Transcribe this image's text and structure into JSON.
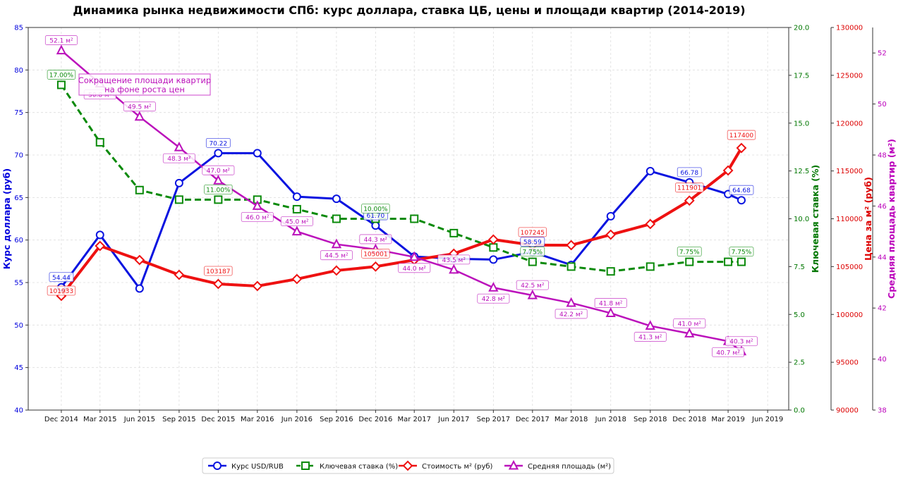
{
  "chart_data": {
    "type": "line",
    "title": "Динамика рынка недвижимости СПб: курс доллара, ставка ЦБ, цены и площади квартир (2014-2019)",
    "x": [
      "2014-12",
      "2015-03",
      "2015-06",
      "2015-09",
      "2015-12",
      "2016-03",
      "2016-06",
      "2016-09",
      "2016-12",
      "2017-03",
      "2017-06",
      "2017-09",
      "2017-12",
      "2018-03",
      "2018-06",
      "2018-09",
      "2018-12",
      "2019-03",
      "2019-04"
    ],
    "xtick_labels": [
      "Dec 2014",
      "Mar 2015",
      "Jun 2015",
      "Sep 2015",
      "Dec 2015",
      "Mar 2016",
      "Jun 2016",
      "Sep 2016",
      "Dec 2016",
      "Mar 2017",
      "Jun 2017",
      "Sep 2017",
      "Dec 2017",
      "Mar 2018",
      "Jun 2018",
      "Sep 2018",
      "Dec 2018",
      "Mar 2019",
      "Jun 2019"
    ],
    "xtick_dates": [
      "2014-12",
      "2015-03",
      "2015-06",
      "2015-09",
      "2015-12",
      "2016-03",
      "2016-06",
      "2016-09",
      "2016-12",
      "2017-03",
      "2017-06",
      "2017-09",
      "2017-12",
      "2018-03",
      "2018-06",
      "2018-09",
      "2018-12",
      "2019-03",
      "2019-06"
    ],
    "xlim": [
      "2014-09-15",
      "2019-07-20"
    ],
    "grid": true,
    "legend_placement": "bottom-center",
    "axes": [
      {
        "id": "usd",
        "side": "left",
        "label": "Курс доллара (руб)",
        "ylim": [
          40,
          85
        ],
        "ticks": [
          40,
          45,
          50,
          55,
          60,
          65,
          70,
          75,
          80,
          85
        ],
        "color": "#0000dd",
        "tick_decimals": 0
      },
      {
        "id": "rate",
        "side": "right",
        "label": "Ключевая ставка (%)",
        "ylim": [
          0,
          20
        ],
        "ticks": [
          0,
          2.5,
          5,
          7.5,
          10,
          12.5,
          15,
          17.5,
          20
        ],
        "color": "#007700",
        "tick_decimals": 1
      },
      {
        "id": "price",
        "side": "right",
        "label": "Цена за м² (руб)",
        "ylim": [
          90000,
          130000
        ],
        "ticks": [
          90000,
          95000,
          100000,
          105000,
          110000,
          115000,
          120000,
          125000,
          130000
        ],
        "color": "#dd0000",
        "tick_decimals": 0
      },
      {
        "id": "area",
        "side": "right",
        "label": "Средняя площадь квартир (м²)",
        "ylim": [
          38,
          53
        ],
        "ticks": [
          38,
          40,
          42,
          44,
          46,
          48,
          50,
          52
        ],
        "color": "#bb00bb",
        "tick_decimals": 0
      }
    ],
    "series": [
      {
        "name": "Курс USD/RUB",
        "axis": "usd",
        "color": "#0a14e0",
        "marker": "circle",
        "dash": false,
        "values": [
          54.44,
          60.6,
          54.3,
          66.7,
          70.22,
          70.22,
          65.1,
          64.85,
          61.7,
          58.06,
          57.8,
          57.7,
          58.59,
          57.07,
          62.8,
          68.1,
          66.78,
          65.4,
          64.68
        ],
        "labels": {
          "0": "54.44",
          "4": "70.22",
          "8": "61.70",
          "12": "58.59",
          "16": "66.78",
          "18": "64.68"
        },
        "label_suffix": ""
      },
      {
        "name": "Ключевая ставка (%)",
        "axis": "rate",
        "color": "#0a8a0a",
        "marker": "square",
        "dash": true,
        "values": [
          17.0,
          14.0,
          11.5,
          11.0,
          11.0,
          11.0,
          10.5,
          10.0,
          10.0,
          10.0,
          9.25,
          8.5,
          7.75,
          7.5,
          7.25,
          7.5,
          7.75,
          7.75,
          7.75
        ],
        "labels": {
          "0": "17.00%",
          "4": "11.00%",
          "8": "10.00%",
          "12": "7.75%",
          "16": "7.75%",
          "18": "7.75%"
        }
      },
      {
        "name": "Стоимость м² (руб)",
        "axis": "price",
        "color": "#ee1111",
        "marker": "diamond",
        "dash": false,
        "values": [
          101933,
          107160,
          105690,
          104140,
          103187,
          102965,
          103700,
          104590,
          105001,
          105690,
          106350,
          107830,
          107245,
          107240,
          108340,
          109450,
          111901,
          115050,
          117400
        ],
        "labels": {
          "0": "101933",
          "4": "103187",
          "8": "105001",
          "12": "107245",
          "16": "111901",
          "18": "117400"
        }
      },
      {
        "name": "Средняя площадь (м²)",
        "axis": "area",
        "color": "#bb11bb",
        "marker": "triangle",
        "dash": false,
        "values": [
          52.1,
          50.8,
          49.5,
          48.3,
          47.0,
          46.0,
          45.0,
          44.5,
          44.3,
          44.0,
          43.5,
          42.8,
          42.5,
          42.2,
          41.8,
          41.3,
          41.0,
          40.7,
          40.3
        ],
        "labels": {
          "0": "52.1 м²",
          "1": "50.8 м²",
          "2": "49.5 м²",
          "3": "48.3 м²",
          "4": "47.0 м²",
          "5": "46.0 м²",
          "6": "45.0 м²",
          "7": "44.5 м²",
          "8": "44.3 м²",
          "9": "44.0 м²",
          "10": "43.5 м²",
          "11": "42.8 м²",
          "12": "42.5 м²",
          "13": "42.2 м²",
          "14": "41.8 м²",
          "15": "41.3 м²",
          "16": "41.0 м²",
          "17": "40.7 м²",
          "18": "40.3 м²"
        }
      }
    ],
    "annotation": {
      "text_line1": "Сокращение площади квартир",
      "text_line2": "на фоне роста цен",
      "color": "#bb11bb"
    }
  }
}
